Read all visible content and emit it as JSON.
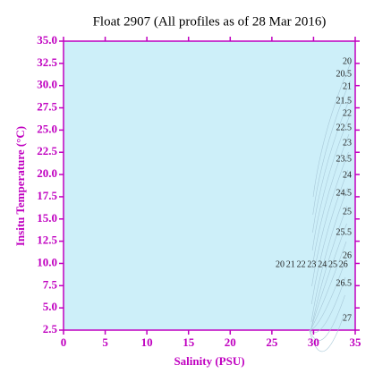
{
  "chart_data": {
    "type": "scatter",
    "title": "Float 2907  (All profiles as of 28 Mar 2016)",
    "x_label": "Salinity (PSU)",
    "y_label": "Insitu Temperature (°C)",
    "x": [],
    "values": [],
    "xlim": [
      0,
      35
    ],
    "ylim": [
      2.5,
      35
    ],
    "xticks": [
      0,
      5,
      10,
      15,
      20,
      25,
      30,
      35
    ],
    "yticks": [
      {
        "value": 2.5,
        "label": "2.5"
      },
      {
        "value": 5,
        "label": "5.0"
      },
      {
        "value": 7.5,
        "label": "7.5"
      },
      {
        "value": 10,
        "label": "10.0"
      },
      {
        "value": 12.5,
        "label": "12.5"
      },
      {
        "value": 15,
        "label": "15.0"
      },
      {
        "value": 17.5,
        "label": "17.5"
      },
      {
        "value": 20,
        "label": "20.0"
      },
      {
        "value": 22.5,
        "label": "22.5"
      },
      {
        "value": 25,
        "label": "25.0"
      },
      {
        "value": 27.5,
        "label": "27.5"
      },
      {
        "value": 30,
        "label": "30.0"
      },
      {
        "value": 32.5,
        "label": "32.5"
      },
      {
        "value": 35,
        "label": "35.0"
      }
    ],
    "plot_background": "#cdeff9",
    "axis_color": "#c000c0",
    "contour_labels_right": [
      "20",
      "20.5",
      "21",
      "21.5",
      "22",
      "22.5",
      "23",
      "23.5",
      "24",
      "24.5",
      "25",
      "25.5",
      "26",
      "26.5",
      "27"
    ],
    "contour_labels_bottom": [
      "20",
      "21",
      "22",
      "23",
      "24",
      "25",
      "26"
    ]
  }
}
